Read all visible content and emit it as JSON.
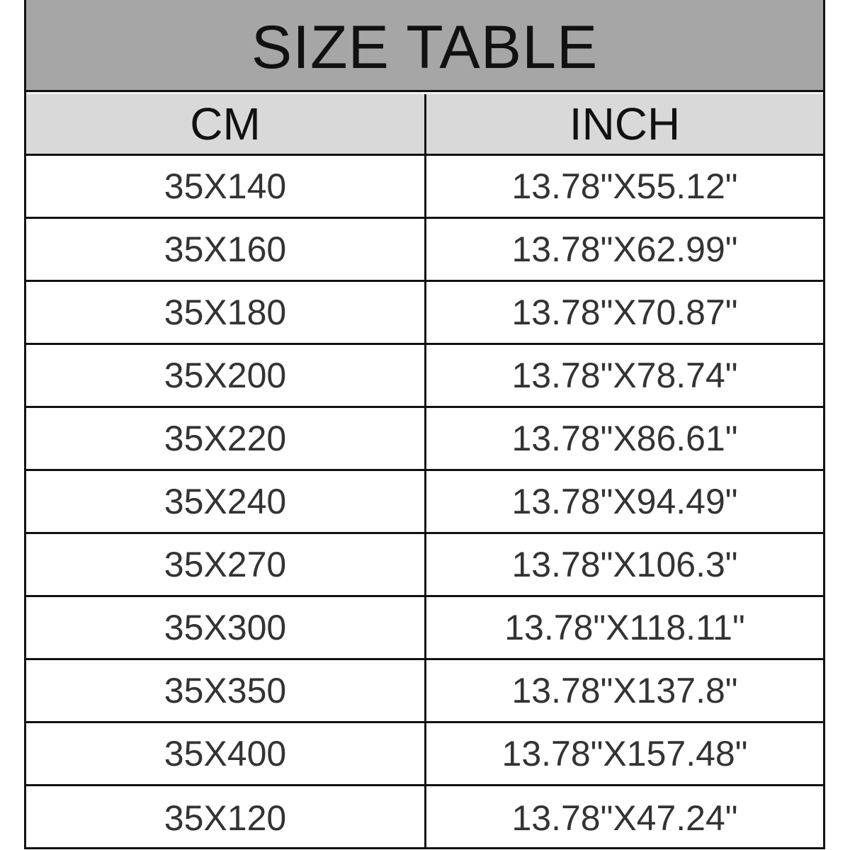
{
  "title": "SIZE TABLE",
  "headers": [
    "CM",
    "INCH"
  ],
  "rows": [
    [
      "35X140",
      "13.78\"X55.12\""
    ],
    [
      "35X160",
      "13.78\"X62.99\""
    ],
    [
      "35X180",
      "13.78\"X70.87\""
    ],
    [
      "35X200",
      "13.78\"X78.74\""
    ],
    [
      "35X220",
      "13.78\"X86.61\""
    ],
    [
      "35X240",
      "13.78\"X94.49\""
    ],
    [
      "35X270",
      "13.78\"X106.3\""
    ],
    [
      "35X300",
      "13.78\"X118.11\""
    ],
    [
      "35X350",
      "13.78\"X137.8\""
    ],
    [
      "35X400",
      "13.78\"X157.48\""
    ],
    [
      "35X120",
      "13.78\"X47.24\""
    ]
  ],
  "colors": {
    "title_bg": "#a6a6a6",
    "header_bg": "#d9d9d9",
    "border": "#111111"
  }
}
